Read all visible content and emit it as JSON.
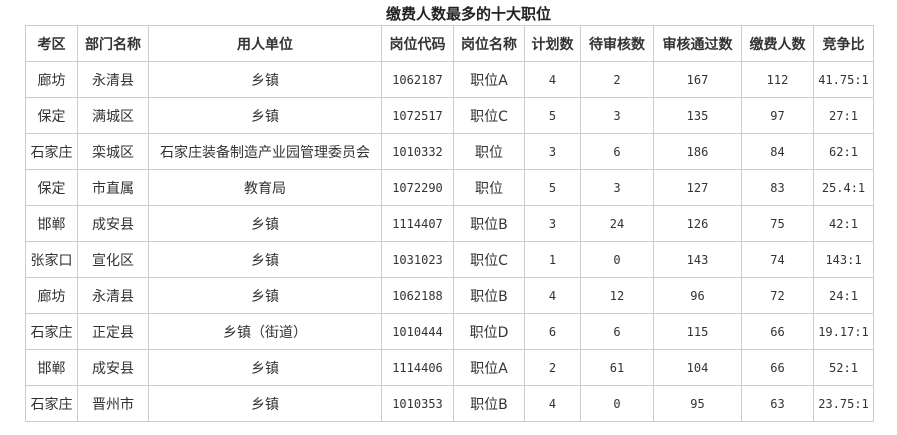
{
  "title": "缴费人数最多的十大职位",
  "headers": [
    "考区",
    "部门名称",
    "用人单位",
    "岗位代码",
    "岗位名称",
    "计划数",
    "待审核数",
    "审核通过数",
    "缴费人数",
    "竞争比"
  ],
  "rows": [
    [
      "廊坊",
      "永清县",
      "乡镇",
      "1062187",
      "职位A",
      "4",
      "2",
      "167",
      "112",
      "41.75:1"
    ],
    [
      "保定",
      "满城区",
      "乡镇",
      "1072517",
      "职位C",
      "5",
      "3",
      "135",
      "97",
      "27:1"
    ],
    [
      "石家庄",
      "栾城区",
      "石家庄装备制造产业园管理委员会",
      "1010332",
      "职位",
      "3",
      "6",
      "186",
      "84",
      "62:1"
    ],
    [
      "保定",
      "市直属",
      "教育局",
      "1072290",
      "职位",
      "5",
      "3",
      "127",
      "83",
      "25.4:1"
    ],
    [
      "邯郸",
      "成安县",
      "乡镇",
      "1114407",
      "职位B",
      "3",
      "24",
      "126",
      "75",
      "42:1"
    ],
    [
      "张家口",
      "宣化区",
      "乡镇",
      "1031023",
      "职位C",
      "1",
      "0",
      "143",
      "74",
      "143:1"
    ],
    [
      "廊坊",
      "永清县",
      "乡镇",
      "1062188",
      "职位B",
      "4",
      "12",
      "96",
      "72",
      "24:1"
    ],
    [
      "石家庄",
      "正定县",
      "乡镇（街道）",
      "1010444",
      "职位D",
      "6",
      "6",
      "115",
      "66",
      "19.17:1"
    ],
    [
      "邯郸",
      "成安县",
      "乡镇",
      "1114406",
      "职位A",
      "2",
      "61",
      "104",
      "66",
      "52:1"
    ],
    [
      "石家庄",
      "晋州市",
      "乡镇",
      "1010353",
      "职位B",
      "4",
      "0",
      "95",
      "63",
      "23.75:1"
    ]
  ]
}
